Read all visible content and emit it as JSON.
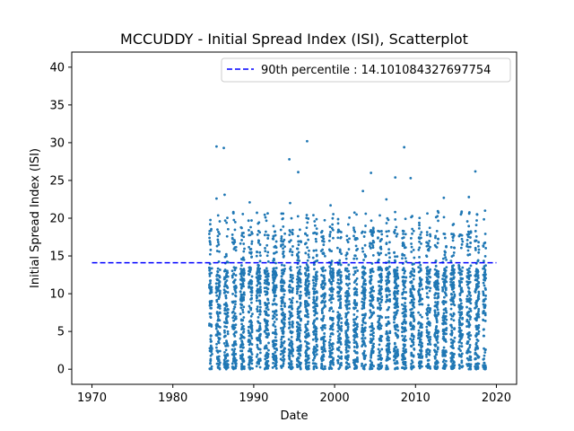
{
  "chart_data": {
    "type": "scatter",
    "title": "MCCUDDY - Initial Spread Index (ISI), Scatterplot",
    "xlabel": "Date",
    "ylabel": "Initial Spread Index (ISI)",
    "xlim": [
      1967.5,
      2022.5
    ],
    "ylim": [
      -2.0,
      42.0
    ],
    "xticks": [
      1970,
      1980,
      1990,
      2000,
      2010,
      2020
    ],
    "yticks": [
      0,
      5,
      10,
      15,
      20,
      25,
      30,
      35,
      40
    ],
    "legend": {
      "position": "top-right",
      "entries": [
        "90th percentile : 14.101084327697754"
      ]
    },
    "grid": false,
    "colors": {
      "points": "#1f77b4",
      "percentile_line": "#0000ff"
    },
    "series": [
      {
        "kind": "points",
        "x_range": [
          1984.5,
          2018.7
        ],
        "note": "Dense daily fire-season observations, mostly 0-20, with a few peaks up to ~30",
        "outliers": [
          {
            "x": 1985.4,
            "y": 29.5
          },
          {
            "x": 1986.3,
            "y": 29.3
          },
          {
            "x": 1996.6,
            "y": 30.2
          },
          {
            "x": 2008.6,
            "y": 29.4
          },
          {
            "x": 1994.4,
            "y": 27.8
          },
          {
            "x": 2017.4,
            "y": 26.2
          },
          {
            "x": 1995.5,
            "y": 26.1
          },
          {
            "x": 2004.5,
            "y": 26.0
          },
          {
            "x": 2007.5,
            "y": 25.4
          },
          {
            "x": 2009.4,
            "y": 25.3
          },
          {
            "x": 2003.5,
            "y": 23.6
          },
          {
            "x": 1986.4,
            "y": 23.1
          },
          {
            "x": 1985.4,
            "y": 22.6
          },
          {
            "x": 2013.5,
            "y": 22.7
          },
          {
            "x": 2016.6,
            "y": 22.8
          },
          {
            "x": 1989.5,
            "y": 22.1
          },
          {
            "x": 1994.5,
            "y": 22.0
          },
          {
            "x": 1999.5,
            "y": 21.7
          },
          {
            "x": 2006.4,
            "y": 22.5
          },
          {
            "x": 2018.6,
            "y": 21.0
          }
        ]
      },
      {
        "kind": "line",
        "name": "90th percentile : 14.101084327697754",
        "x": [
          1970,
          2020
        ],
        "y": [
          14.101084327697754,
          14.101084327697754
        ],
        "style": "dashed"
      }
    ]
  }
}
